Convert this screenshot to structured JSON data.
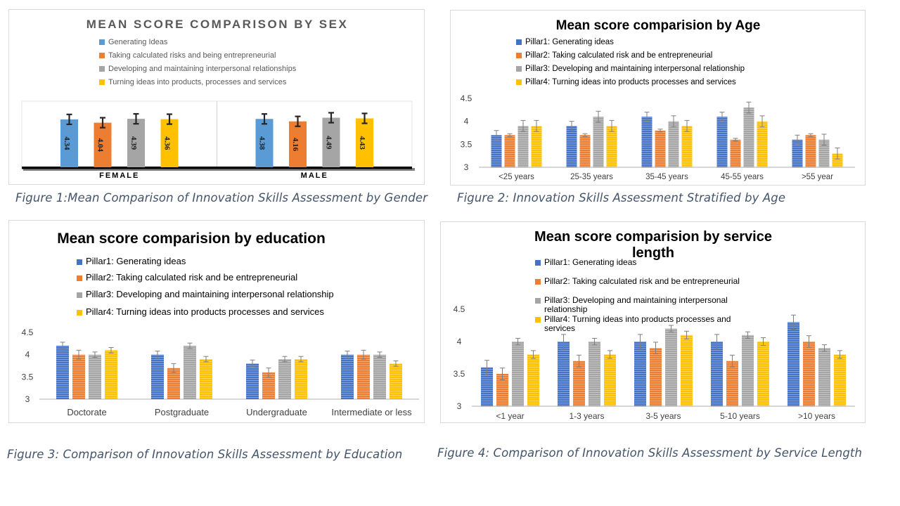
{
  "captions": [
    "Figure 1:Mean Comparison of Innovation Skills Assessment by Gender",
    "Figure 2: Innovation Skills Assessment Stratified by Age",
    "Figure 3: Comparison of Innovation Skills Assessment by Education",
    "Figure 4: Comparison of Innovation Skills Assessment by Service Length"
  ],
  "chart_data": [
    {
      "type": "bar",
      "title": "MEAN SCORE COMPARISON BY SEX",
      "categories": [
        "FEMALE",
        "MALE"
      ],
      "legend_position": "top",
      "data_labels": true,
      "series": [
        {
          "name": "Generating Ideas",
          "color": "#5b9bd5",
          "values": [
            4.34,
            4.38
          ],
          "error": 0.45
        },
        {
          "name": "Taking calculated risks and being entrepreneurial",
          "color": "#ed7d31",
          "values": [
            4.04,
            4.16
          ],
          "error": 0.45
        },
        {
          "name": "Developing and maintaining interpersonal relationships",
          "color": "#a5a5a5",
          "values": [
            4.39,
            4.49
          ],
          "error": 0.45
        },
        {
          "name": "Turning ideas into products, processes and services",
          "color": "#ffc000",
          "values": [
            4.36,
            4.43
          ],
          "error": 0.45
        }
      ],
      "grid": false
    },
    {
      "type": "bar",
      "title": "Mean score comparision by Age",
      "categories": [
        "<25 years",
        "25-35 years",
        "35-45 years",
        "45-55 years",
        ">55 year"
      ],
      "ylim": [
        3,
        4.5
      ],
      "yticks": [
        "3",
        "3.5",
        "4",
        "4.5"
      ],
      "legend_position": "top",
      "series": [
        {
          "name": "Pillar1: Generating ideas",
          "color": "#4472c4",
          "values": [
            3.7,
            3.9,
            4.1,
            4.1,
            3.6
          ],
          "error": 0.1
        },
        {
          "name": "Pillar2: Taking calculated risk and be entrepreneurial",
          "color": "#ed7d31",
          "values": [
            3.7,
            3.7,
            3.8,
            3.6,
            3.7
          ],
          "error": 0.03
        },
        {
          "name": "Pillar3: Developing and maintaining interpersonal relationship",
          "color": "#a5a5a5",
          "values": [
            3.9,
            4.1,
            4.0,
            4.3,
            3.6
          ],
          "error": 0.12
        },
        {
          "name": "Pillar4: Turning ideas into products processes and services",
          "color": "#ffc000",
          "values": [
            3.9,
            3.9,
            3.9,
            4.0,
            3.3
          ],
          "error": 0.12
        }
      ],
      "grid": false
    },
    {
      "type": "bar",
      "title": "Mean score comparision by education",
      "categories": [
        "Doctorate",
        "Postgraduate",
        "Undergraduate",
        "Intermediate or less"
      ],
      "ylim": [
        3,
        4.5
      ],
      "yticks": [
        "3",
        "3.5",
        "4",
        "4.5"
      ],
      "legend_position": "top",
      "series": [
        {
          "name": "Pillar1: Generating ideas",
          "color": "#4472c4",
          "values": [
            4.2,
            4.0,
            3.8,
            4.0
          ],
          "error": 0.08
        },
        {
          "name": "Pillar2: Taking calculated risk and be entrepreneurial",
          "color": "#ed7d31",
          "values": [
            4.0,
            3.7,
            3.6,
            4.0
          ],
          "error": 0.1
        },
        {
          "name": "Pillar3: Developing and maintaining interpersonal relationship",
          "color": "#a5a5a5",
          "values": [
            4.0,
            4.2,
            3.9,
            4.0
          ],
          "error": 0.06
        },
        {
          "name": "Pillar4: Turning ideas into products processes and services",
          "color": "#ffc000",
          "values": [
            4.1,
            3.9,
            3.9,
            3.8
          ],
          "error": 0.06
        }
      ],
      "grid": false
    },
    {
      "type": "bar",
      "title": "Mean score comparision by service length",
      "categories": [
        "<1 year",
        "1-3 years",
        "3-5 years",
        "5-10 years",
        ">10 years"
      ],
      "ylim": [
        3,
        4.5
      ],
      "yticks": [
        "3",
        "3.5",
        "4",
        "4.5"
      ],
      "legend_position": "top",
      "series": [
        {
          "name": "Pillar1: Generating ideas",
          "color": "#4472c4",
          "values": [
            3.6,
            4.0,
            4.0,
            4.0,
            4.3
          ],
          "error": 0.11
        },
        {
          "name": "Pillar2: Taking calculated risk and be entrepreneurial",
          "color": "#ed7d31",
          "values": [
            3.5,
            3.7,
            3.9,
            3.7,
            4.0
          ],
          "error": 0.09
        },
        {
          "name": "Pillar3: Developing and maintaining interpersonal relationship",
          "color": "#a5a5a5",
          "values": [
            4.0,
            4.0,
            4.2,
            4.1,
            3.9
          ],
          "error": 0.05
        },
        {
          "name": "Pillar4: Turning ideas into products processes and services",
          "color": "#ffc000",
          "values": [
            3.8,
            3.8,
            4.1,
            4.0,
            3.8
          ],
          "error": 0.06
        }
      ],
      "grid": false
    }
  ]
}
